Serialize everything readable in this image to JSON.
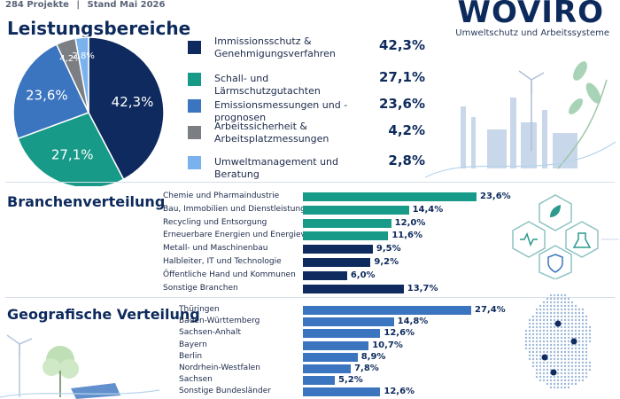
{
  "header": {
    "projects": "284 Projekte",
    "separator": "|",
    "date": "Stand Mai 2026"
  },
  "brand": {
    "name": "WOVIRO",
    "tagline": "Umweltschutz und Arbeitssysteme"
  },
  "colors": {
    "navy": "#0f2a5e",
    "teal": "#179a87",
    "blue": "#3b74bf",
    "gray": "#7b7e83",
    "light_blue": "#79b2ec"
  },
  "chart_data": [
    {
      "type": "pie",
      "title": "Leistungsbereiche",
      "categories": [
        "Immissionsschutz & Genehmigungsverfahren",
        "Schall- und Lärmschutzgutachten",
        "Emissionsmessungen und -prognosen",
        "Arbeitssicherheit & Arbeitsplatzmessungen",
        "Umweltmanagement und Beratung"
      ],
      "legend_lines": [
        [
          "Immissionsschutz &",
          "Genehmigungsverfahren"
        ],
        [
          "Schall- und Lärmschutzgutachten"
        ],
        [
          "Emissionsmessungen und -prognosen"
        ],
        [
          "Arbeitssicherheit &",
          "Arbeitsplatzmessungen"
        ],
        [
          "Umweltmanagement und Beratung"
        ]
      ],
      "values": [
        42.3,
        27.1,
        23.6,
        4.2,
        2.8
      ],
      "labels": [
        "42,3%",
        "27,1%",
        "23,6%",
        "4,2%",
        "2,8%"
      ],
      "colors": [
        "#0f2a5e",
        "#179a87",
        "#3b74bf",
        "#7b7e83",
        "#79b2ec"
      ],
      "legend": "right"
    },
    {
      "type": "bar",
      "orientation": "horizontal",
      "title": "Branchenverteilung",
      "categories": [
        "Chemie und Pharmaindustrie",
        "Bau, Immobilien und Dienstleistungen",
        "Recycling und Entsorgung",
        "Erneuerbare Energien und Energieversorgung",
        "Metall- und Maschinenbau",
        "Halbleiter, IT und Technologie",
        "Öffentliche Hand und Kommunen",
        "Sonstige Branchen"
      ],
      "values": [
        23.6,
        14.4,
        12.0,
        11.6,
        9.5,
        9.2,
        6.0,
        13.7
      ],
      "labels": [
        "23,6%",
        "14,4%",
        "12,0%",
        "11,6%",
        "9,5%",
        "9,2%",
        "6,0%",
        "13,7%"
      ],
      "colors": [
        "#179a87",
        "#179a87",
        "#179a87",
        "#179a87",
        "#0f2a5e",
        "#0f2a5e",
        "#0f2a5e",
        "#0f2a5e"
      ]
    },
    {
      "type": "bar",
      "orientation": "horizontal",
      "title": "Geografische Verteilung",
      "categories": [
        "Thüringen",
        "Baden-Württemberg",
        "Sachsen-Anhalt",
        "Bayern",
        "Berlin",
        "Nordrhein-Westfalen",
        "Sachsen",
        "Sonstige Bundesländer"
      ],
      "values": [
        27.4,
        14.8,
        12.6,
        10.7,
        8.9,
        7.8,
        5.2,
        12.6
      ],
      "labels": [
        "27,4%",
        "14,8%",
        "12,6%",
        "10,7%",
        "8,9%",
        "7,8%",
        "5,2%",
        "12,6%"
      ],
      "colors": [
        "#3b74bf"
      ]
    }
  ]
}
